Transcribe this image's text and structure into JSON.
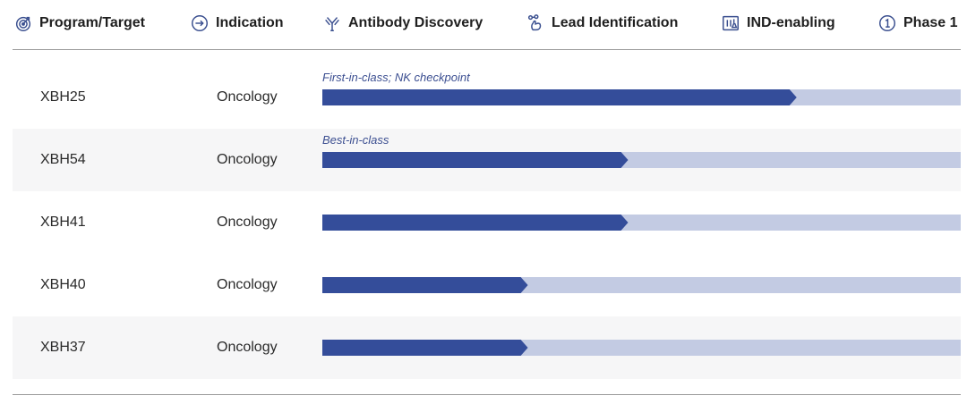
{
  "header": {
    "columns": [
      {
        "label": "Program/Target",
        "icon": "target-icon"
      },
      {
        "label": "Indication",
        "icon": "arrow-circle-icon"
      },
      {
        "label": "Antibody Discovery",
        "icon": "antibody-icon"
      },
      {
        "label": "Lead Identification",
        "icon": "hand-molecule-icon"
      },
      {
        "label": "IND-enabling",
        "icon": "flask-icon"
      },
      {
        "label": "Phase 1",
        "icon": "number-one-circle-icon"
      }
    ]
  },
  "colors": {
    "progress_fill": "#344d9a",
    "progress_track": "#c3cbe3",
    "note_text": "#3c4f91",
    "row_shade": "#f6f6f7"
  },
  "programs": [
    {
      "target": "XBH25",
      "indication": "Oncology",
      "note": "First-in-class; NK checkpoint",
      "progress": 0.743
    },
    {
      "target": "XBH54",
      "indication": "Oncology",
      "note": "Best-in-class",
      "progress": 0.479
    },
    {
      "target": "XBH41",
      "indication": "Oncology",
      "note": "",
      "progress": 0.479
    },
    {
      "target": "XBH40",
      "indication": "Oncology",
      "note": "",
      "progress": 0.322
    },
    {
      "target": "XBH37",
      "indication": "Oncology",
      "note": "",
      "progress": 0.322
    }
  ]
}
